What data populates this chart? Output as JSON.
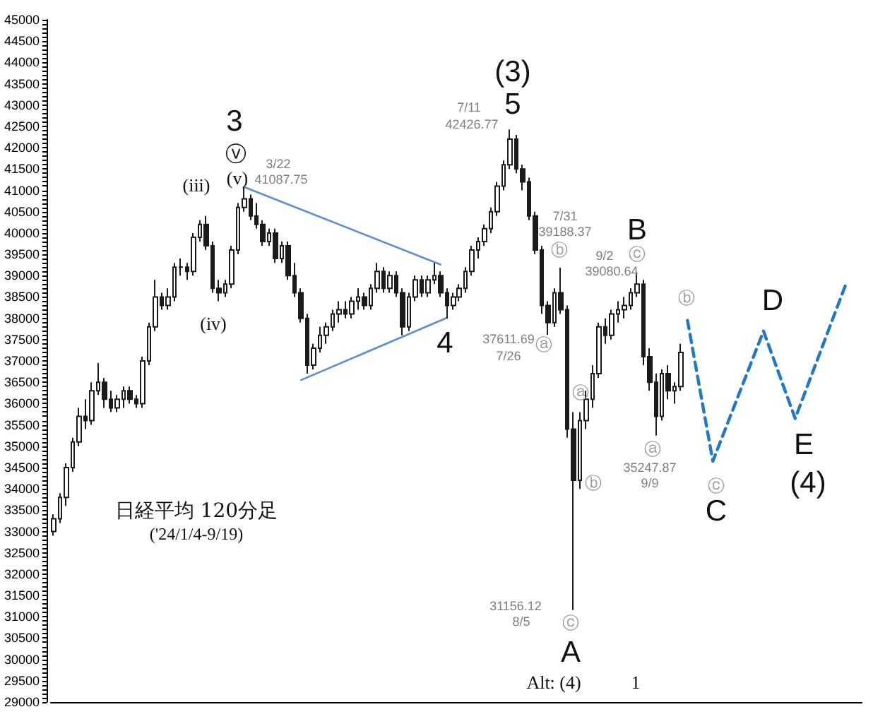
{
  "chart_data": {
    "type": "candlestick",
    "title": "日経平均 120分足",
    "subtitle": "('24/1/4-9/19)",
    "categories": [
      null,
      null,
      null,
      null,
      null,
      null,
      null,
      null,
      null,
      null,
      null,
      null,
      null,
      null,
      null,
      null,
      null,
      null,
      null,
      null,
      null,
      null,
      null,
      null,
      null,
      null,
      null,
      null,
      null,
      null,
      null,
      null,
      null,
      null,
      null,
      null,
      null,
      null,
      null,
      null,
      null,
      null,
      null,
      null,
      null,
      null,
      null,
      null,
      null,
      null,
      null,
      null,
      null,
      null,
      null,
      null,
      null,
      null,
      null,
      null,
      null,
      null,
      null,
      null,
      null,
      null,
      null,
      null,
      null,
      null,
      null,
      null,
      null,
      null,
      null,
      null,
      null,
      null,
      null,
      null,
      null,
      null,
      null,
      null,
      null,
      null,
      null,
      null,
      null,
      null,
      null,
      null,
      null,
      null,
      null,
      null,
      null,
      null,
      null,
      null,
      null,
      null,
      null,
      null,
      null,
      null,
      null,
      null,
      null,
      null,
      null,
      null,
      null,
      null,
      null,
      null,
      null,
      null,
      null,
      null,
      null,
      null,
      null,
      null,
      null,
      null,
      null,
      null
    ],
    "series": [
      {
        "type": "line",
        "color": "#5b8fd0",
        "line_style": "solid",
        "values": [
          null,
          null,
          null,
          null,
          null,
          null,
          null,
          null,
          null,
          null,
          null,
          null,
          null,
          null,
          null,
          null,
          null,
          null,
          null,
          null,
          null,
          null,
          null,
          null,
          null,
          null,
          null,
          null,
          null,
          null,
          41080,
          null,
          null,
          null,
          null,
          null,
          null,
          null,
          null,
          null,
          null,
          null,
          null,
          null,
          null,
          null,
          null,
          null,
          null,
          null,
          null,
          null,
          null,
          null,
          null,
          null,
          null,
          null,
          null,
          null,
          null,
          39260,
          null,
          null,
          null,
          null,
          null,
          null,
          null,
          null,
          null,
          null,
          null,
          null,
          null,
          null,
          null,
          null,
          null,
          null,
          null,
          null,
          null,
          null,
          null,
          null,
          null,
          null,
          null,
          null,
          null,
          null,
          null,
          null,
          null,
          null,
          null,
          null,
          null,
          null,
          null,
          null,
          null,
          null,
          null,
          null,
          null,
          null,
          null,
          null,
          null,
          null,
          null,
          null,
          null,
          null,
          null,
          null,
          null,
          null,
          null,
          null,
          null,
          null,
          null,
          null,
          null,
          null
        ]
      },
      {
        "type": "line",
        "color": "#5b8fd0",
        "line_style": "solid",
        "values": [
          null,
          null,
          null,
          null,
          null,
          null,
          null,
          null,
          null,
          null,
          null,
          null,
          null,
          null,
          null,
          null,
          null,
          null,
          null,
          null,
          null,
          null,
          null,
          null,
          null,
          null,
          null,
          null,
          null,
          null,
          null,
          null,
          null,
          null,
          null,
          null,
          null,
          null,
          null,
          36550,
          null,
          null,
          null,
          null,
          null,
          null,
          null,
          null,
          null,
          null,
          null,
          null,
          null,
          null,
          null,
          null,
          null,
          null,
          null,
          null,
          null,
          null,
          38010,
          null,
          null,
          null,
          null,
          null,
          null,
          null,
          null,
          null,
          null,
          null,
          null,
          null,
          null,
          null,
          null,
          null,
          null,
          null,
          null,
          null,
          null,
          null,
          null,
          null,
          null,
          null,
          null,
          null,
          null,
          null,
          null,
          null,
          null,
          null,
          null,
          null,
          null,
          null,
          null,
          null,
          null,
          null,
          null,
          null,
          null,
          null,
          null,
          null,
          null,
          null,
          null,
          null,
          null,
          null,
          null,
          null,
          null,
          null,
          null,
          null,
          null,
          null,
          null,
          null
        ]
      },
      {
        "type": "line",
        "color": "#1f78c8",
        "line_style": "dashed",
        "values": [
          null,
          null,
          null,
          null,
          null,
          null,
          null,
          null,
          null,
          null,
          null,
          null,
          null,
          null,
          null,
          null,
          null,
          null,
          null,
          null,
          null,
          null,
          null,
          null,
          null,
          null,
          null,
          null,
          null,
          null,
          null,
          null,
          null,
          null,
          null,
          null,
          null,
          null,
          null,
          null,
          null,
          null,
          null,
          null,
          null,
          null,
          null,
          null,
          null,
          null,
          null,
          null,
          null,
          null,
          null,
          null,
          null,
          null,
          null,
          null,
          null,
          null,
          null,
          null,
          null,
          null,
          null,
          null,
          null,
          null,
          null,
          null,
          null,
          null,
          null,
          null,
          null,
          null,
          null,
          null,
          null,
          null,
          null,
          null,
          null,
          null,
          null,
          null,
          null,
          null,
          null,
          null,
          null,
          null,
          null,
          null,
          null,
          null,
          null,
          null,
          37950,
          null,
          null,
          null,
          34650,
          null,
          null,
          null,
          null,
          null,
          null,
          null,
          37700,
          null,
          null,
          null,
          null,
          35650,
          null,
          null,
          null,
          null,
          null,
          null,
          null,
          38800,
          null,
          null
        ]
      },
      {
        "color": "#1a1a1a",
        "ohlc": [
          [
            33000,
            33400,
            32900,
            33300
          ],
          [
            33300,
            33900,
            33200,
            33800
          ],
          [
            33800,
            34600,
            33600,
            34500
          ],
          [
            34500,
            35200,
            34400,
            35100
          ],
          [
            35100,
            35900,
            35000,
            35700
          ],
          [
            35700,
            36100,
            35400,
            35600
          ],
          [
            35600,
            36500,
            35500,
            36300
          ],
          [
            36300,
            36950,
            36200,
            36500
          ],
          [
            36500,
            36600,
            35900,
            36100
          ],
          [
            36100,
            36300,
            35800,
            35900
          ],
          [
            35900,
            36200,
            35800,
            36100
          ],
          [
            36100,
            36400,
            35900,
            36300
          ],
          [
            36300,
            36400,
            36000,
            36100
          ],
          [
            36100,
            36200,
            35900,
            36000
          ],
          [
            36000,
            37100,
            35900,
            37000
          ],
          [
            37000,
            37900,
            36900,
            37800
          ],
          [
            37800,
            38900,
            37700,
            38500
          ],
          [
            38500,
            38600,
            38200,
            38300
          ],
          [
            38300,
            38700,
            38200,
            38500
          ],
          [
            38500,
            39300,
            38400,
            39200
          ],
          [
            39200,
            39400,
            39000,
            39200
          ],
          [
            39200,
            39300,
            38900,
            39100
          ],
          [
            39100,
            40000,
            39000,
            39900
          ],
          [
            39900,
            40300,
            39800,
            40200
          ],
          [
            40200,
            40400,
            39600,
            39700
          ],
          [
            39700,
            39800,
            38600,
            38700
          ],
          [
            38700,
            38900,
            38400,
            38600
          ],
          [
            38600,
            38900,
            38500,
            38800
          ],
          [
            38800,
            39700,
            38700,
            39600
          ],
          [
            39600,
            40700,
            39500,
            40600
          ],
          [
            40600,
            41087.75,
            40500,
            40800
          ],
          [
            40800,
            40900,
            40300,
            40400
          ],
          [
            40400,
            40700,
            40100,
            40200
          ],
          [
            40200,
            40300,
            39700,
            39800
          ],
          [
            39800,
            40100,
            39700,
            40000
          ],
          [
            40000,
            40100,
            39300,
            39400
          ],
          [
            39400,
            39800,
            39300,
            39700
          ],
          [
            39700,
            39800,
            38900,
            39000
          ],
          [
            39000,
            39300,
            38500,
            38600
          ],
          [
            38600,
            38700,
            37900,
            38000
          ],
          [
            38000,
            38100,
            36700,
            36900
          ],
          [
            36900,
            37400,
            36800,
            37300
          ],
          [
            37300,
            37800,
            37200,
            37600
          ],
          [
            37600,
            37900,
            37400,
            37800
          ],
          [
            37800,
            38200,
            37700,
            38100
          ],
          [
            38100,
            38400,
            37900,
            38200
          ],
          [
            38200,
            38400,
            38000,
            38100
          ],
          [
            38100,
            38500,
            38000,
            38400
          ],
          [
            38400,
            38700,
            38200,
            38500
          ],
          [
            38500,
            38600,
            38200,
            38300
          ],
          [
            38300,
            38800,
            38200,
            38700
          ],
          [
            38700,
            39300,
            38600,
            39100
          ],
          [
            39100,
            39200,
            38600,
            38700
          ],
          [
            38700,
            39100,
            38600,
            39000
          ],
          [
            39000,
            39100,
            38500,
            38600
          ],
          [
            38600,
            38700,
            37600,
            37800
          ],
          [
            37800,
            38600,
            37700,
            38500
          ],
          [
            38500,
            39000,
            38400,
            38900
          ],
          [
            38900,
            39000,
            38500,
            38600
          ],
          [
            38600,
            39000,
            38500,
            38900
          ],
          [
            38900,
            39300,
            38800,
            39000
          ],
          [
            39000,
            39100,
            38500,
            38600
          ],
          [
            38600,
            38700,
            38000,
            38300
          ],
          [
            38300,
            38600,
            38200,
            38500
          ],
          [
            38500,
            38800,
            38400,
            38700
          ],
          [
            38700,
            39200,
            38600,
            39100
          ],
          [
            39100,
            39700,
            39000,
            39600
          ],
          [
            39600,
            39900,
            39400,
            39800
          ],
          [
            39800,
            40200,
            39700,
            40100
          ],
          [
            40100,
            40600,
            40000,
            40500
          ],
          [
            40500,
            41200,
            40400,
            41100
          ],
          [
            41100,
            41700,
            41000,
            41600
          ],
          [
            41600,
            42426.77,
            41500,
            42200
          ],
          [
            42200,
            42300,
            41400,
            41500
          ],
          [
            41500,
            41600,
            41000,
            41200
          ],
          [
            41200,
            41300,
            40300,
            40400
          ],
          [
            40400,
            40500,
            39500,
            39600
          ],
          [
            39600,
            39700,
            38100,
            38300
          ],
          [
            38300,
            38400,
            37611.69,
            37900
          ],
          [
            37900,
            38700,
            37800,
            38600
          ],
          [
            38600,
            39188.37,
            38100,
            38200
          ],
          [
            38200,
            38300,
            35200,
            35400
          ],
          [
            35400,
            35800,
            31156.12,
            34200
          ],
          [
            34200,
            35800,
            34000,
            35600
          ],
          [
            35600,
            36300,
            35400,
            36100
          ],
          [
            36100,
            36900,
            35900,
            36700
          ],
          [
            36700,
            37900,
            36600,
            37800
          ],
          [
            37800,
            38000,
            37400,
            37600
          ],
          [
            37600,
            38200,
            37500,
            38100
          ],
          [
            38100,
            38400,
            37900,
            38200
          ],
          [
            38200,
            38500,
            38000,
            38300
          ],
          [
            38300,
            38700,
            38200,
            38600
          ],
          [
            38600,
            39080.64,
            38500,
            38800
          ],
          [
            38800,
            38900,
            36900,
            37100
          ],
          [
            37100,
            37300,
            36300,
            36500
          ],
          [
            36500,
            36700,
            35247.87,
            35700
          ],
          [
            35700,
            36800,
            35600,
            36700
          ],
          [
            36700,
            36900,
            36100,
            36300
          ],
          [
            36300,
            36500,
            36000,
            36400
          ],
          [
            36400,
            37400,
            36300,
            37200
          ],
          null,
          null,
          null,
          null,
          null,
          null,
          null,
          null,
          null,
          null,
          null,
          null,
          null,
          null,
          null,
          null,
          null,
          null,
          null,
          null,
          null,
          null,
          null,
          null,
          null,
          null,
          null,
          null
        ]
      }
    ],
    "ylim": [
      29000,
      45000
    ],
    "yticks": [
      29000,
      {
        "value": 29100,
        "label": null
      },
      {
        "value": 29200,
        "label": null
      },
      {
        "value": 29300,
        "label": null
      },
      {
        "value": 29400,
        "label": null
      },
      29500,
      {
        "value": 29600,
        "label": null
      },
      {
        "value": 29700,
        "label": null
      },
      {
        "value": 29800,
        "label": null
      },
      {
        "value": 29900,
        "label": null
      },
      30000,
      {
        "value": 30100,
        "label": null
      },
      {
        "value": 30200,
        "label": null
      },
      {
        "value": 30300,
        "label": null
      },
      {
        "value": 30400,
        "label": null
      },
      30500,
      {
        "value": 30600,
        "label": null
      },
      {
        "value": 30700,
        "label": null
      },
      {
        "value": 30800,
        "label": null
      },
      {
        "value": 30900,
        "label": null
      },
      31000,
      {
        "value": 31100,
        "label": null
      },
      {
        "value": 31200,
        "label": null
      },
      {
        "value": 31300,
        "label": null
      },
      {
        "value": 31400,
        "label": null
      },
      31500,
      {
        "value": 31600,
        "label": null
      },
      {
        "value": 31700,
        "label": null
      },
      {
        "value": 31800,
        "label": null
      },
      {
        "value": 31900,
        "label": null
      },
      32000,
      {
        "value": 32100,
        "label": null
      },
      {
        "value": 32200,
        "label": null
      },
      {
        "value": 32300,
        "label": null
      },
      {
        "value": 32400,
        "label": null
      },
      32500,
      {
        "value": 32600,
        "label": null
      },
      {
        "value": 32700,
        "label": null
      },
      {
        "value": 32800,
        "label": null
      },
      {
        "value": 32900,
        "label": null
      },
      33000,
      {
        "value": 33100,
        "label": null
      },
      {
        "value": 33200,
        "label": null
      },
      {
        "value": 33300,
        "label": null
      },
      {
        "value": 33400,
        "label": null
      },
      33500,
      {
        "value": 33600,
        "label": null
      },
      {
        "value": 33700,
        "label": null
      },
      {
        "value": 33800,
        "label": null
      },
      {
        "value": 33900,
        "label": null
      },
      34000,
      {
        "value": 34100,
        "label": null
      },
      {
        "value": 34200,
        "label": null
      },
      {
        "value": 34300,
        "label": null
      },
      {
        "value": 34400,
        "label": null
      },
      34500,
      {
        "value": 34600,
        "label": null
      },
      {
        "value": 34700,
        "label": null
      },
      {
        "value": 34800,
        "label": null
      },
      {
        "value": 34900,
        "label": null
      },
      35000,
      {
        "value": 35100,
        "label": null
      },
      {
        "value": 35200,
        "label": null
      },
      {
        "value": 35300,
        "label": null
      },
      {
        "value": 35400,
        "label": null
      },
      35500,
      {
        "value": 35600,
        "label": null
      },
      {
        "value": 35700,
        "label": null
      },
      {
        "value": 35800,
        "label": null
      },
      {
        "value": 35900,
        "label": null
      },
      36000,
      {
        "value": 36100,
        "label": null
      },
      {
        "value": 36200,
        "label": null
      },
      {
        "value": 36300,
        "label": null
      },
      {
        "value": 36400,
        "label": null
      },
      36500,
      {
        "value": 36600,
        "label": null
      },
      {
        "value": 36700,
        "label": null
      },
      {
        "value": 36800,
        "label": null
      },
      {
        "value": 36900,
        "label": null
      },
      37000,
      {
        "value": 37100,
        "label": null
      },
      {
        "value": 37200,
        "label": null
      },
      {
        "value": 37300,
        "label": null
      },
      {
        "value": 37400,
        "label": null
      },
      37500,
      {
        "value": 37600,
        "label": null
      },
      {
        "value": 37700,
        "label": null
      },
      {
        "value": 37800,
        "label": null
      },
      {
        "value": 37900,
        "label": null
      },
      38000,
      {
        "value": 38100,
        "label": null
      },
      {
        "value": 38200,
        "label": null
      },
      {
        "value": 38300,
        "label": null
      },
      {
        "value": 38400,
        "label": null
      },
      38500,
      {
        "value": 38600,
        "label": null
      },
      {
        "value": 38700,
        "label": null
      },
      {
        "value": 38800,
        "label": null
      },
      {
        "value": 38900,
        "label": null
      },
      39000,
      {
        "value": 39100,
        "label": null
      },
      {
        "value": 39200,
        "label": null
      },
      {
        "value": 39300,
        "label": null
      },
      {
        "value": 39400,
        "label": null
      },
      39500,
      {
        "value": 39600,
        "label": null
      },
      {
        "value": 39700,
        "label": null
      },
      {
        "value": 39800,
        "label": null
      },
      {
        "value": 39900,
        "label": null
      },
      40000,
      {
        "value": 40100,
        "label": null
      },
      {
        "value": 40200,
        "label": null
      },
      {
        "value": 40300,
        "label": null
      },
      {
        "value": 40400,
        "label": null
      },
      40500,
      {
        "value": 40600,
        "label": null
      },
      {
        "value": 40700,
        "label": null
      },
      {
        "value": 40800,
        "label": null
      },
      {
        "value": 40900,
        "label": null
      },
      41000,
      {
        "value": 41100,
        "label": null
      },
      {
        "value": 41200,
        "label": null
      },
      {
        "value": 41300,
        "label": null
      },
      {
        "value": 41400,
        "label": null
      },
      41500,
      {
        "value": 41600,
        "label": null
      },
      {
        "value": 41700,
        "label": null
      },
      {
        "value": 41800,
        "label": null
      },
      {
        "value": 41900,
        "label": null
      },
      42000,
      {
        "value": 42100,
        "label": null
      },
      {
        "value": 42200,
        "label": null
      },
      {
        "value": 42300,
        "label": null
      },
      {
        "value": 42400,
        "label": null
      },
      42500,
      {
        "value": 42600,
        "label": null
      },
      {
        "value": 42700,
        "label": null
      },
      {
        "value": 42800,
        "label": null
      },
      {
        "value": 42900,
        "label": null
      },
      43000,
      {
        "value": 43100,
        "label": null
      },
      {
        "value": 43200,
        "label": null
      },
      {
        "value": 43300,
        "label": null
      },
      {
        "value": 43400,
        "label": null
      },
      43500,
      {
        "value": 43600,
        "label": null
      },
      {
        "value": 43700,
        "label": null
      },
      {
        "value": 43800,
        "label": null
      },
      {
        "value": 43900,
        "label": null
      },
      44000,
      {
        "value": 44100,
        "label": null
      },
      {
        "value": 44200,
        "label": null
      },
      {
        "value": 44300,
        "label": null
      },
      {
        "value": 44400,
        "label": null
      },
      44500,
      {
        "value": 44600,
        "label": null
      },
      {
        "value": 44700,
        "label": null
      },
      {
        "value": 44800,
        "label": null
      },
      {
        "value": 44900,
        "label": null
      },
      45000
    ],
    "tick_labels": "y",
    "annotations": [
      "3",
      "ⓥ",
      "(v)",
      "(iii)",
      "(iv)",
      "3/22",
      "41087.75",
      "(3)",
      "5",
      "7/11",
      "42426.77",
      "4",
      "7/31",
      "39188.37",
      "ⓑ",
      "37611.69",
      "7/26",
      "ⓐ",
      "ⓐ",
      "ⓑ",
      "31156.12",
      "8/5",
      "ⓒ",
      "A",
      "Alt: (4)",
      "1",
      "B",
      "ⓒ",
      "9/2",
      "39080.64",
      "ⓐ",
      "35247.87",
      "9/9",
      "ⓑ",
      "ⓒ",
      "C",
      "D",
      "E",
      "(4)"
    ]
  }
}
